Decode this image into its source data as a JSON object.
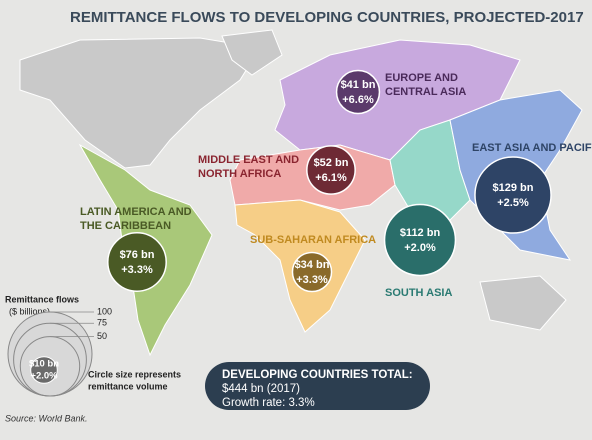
{
  "title": "REMITTANCE FLOWS TO DEVELOPING COUNTRIES, PROJECTED-2017",
  "regions": [
    {
      "name_lines": [
        "EUROPE AND",
        "CENTRAL ASIA"
      ],
      "value": 41,
      "value_label": "$41 bn",
      "growth_label": "+6.6%"
    },
    {
      "name_lines": [
        "MIDDLE EAST AND",
        "NORTH AFRICA"
      ],
      "value": 52,
      "value_label": "$52 bn",
      "growth_label": "+6.1%"
    },
    {
      "name_lines": [
        "EAST ASIA AND PACIFIC"
      ],
      "value": 129,
      "value_label": "$129 bn",
      "growth_label": "+2.5%"
    },
    {
      "name_lines": [
        "SOUTH ASIA"
      ],
      "value": 112,
      "value_label": "$112 bn",
      "growth_label": "+2.0%"
    },
    {
      "name_lines": [
        "SUB-SAHARAN AFRICA"
      ],
      "value": 34,
      "value_label": "$34 bn",
      "growth_label": "+3.3%"
    },
    {
      "name_lines": [
        "LATIN AMERICA AND",
        "THE CARIBBEAN"
      ],
      "value": 76,
      "value_label": "$76 bn",
      "growth_label": "+3.3%"
    }
  ],
  "legend": {
    "title_lines": [
      "Remittance flows",
      "($ billions)"
    ],
    "sizes": [
      100,
      75,
      50
    ],
    "example_value": 10,
    "example_label": "$10 bn",
    "example_growth": "+2.0%",
    "note_lines": [
      "Circle size represents",
      "remittance volume"
    ]
  },
  "total": {
    "heading": "DEVELOPING COUNTRIES TOTAL:",
    "amount": "$444 bn (2017)",
    "growth": "Growth rate: 3.3%"
  },
  "source": "Source: World Bank."
}
